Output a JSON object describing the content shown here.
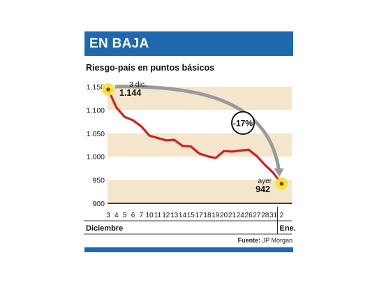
{
  "header": {
    "title": "EN BAJA"
  },
  "subtitle": "Riesgo-país en puntos básicos",
  "source": {
    "label": "Fuente:",
    "value": "JP Morgan"
  },
  "colors": {
    "brand_blue": "#1f68ad",
    "band": "#f4e6cc",
    "line": "#d2211f",
    "highlight": "#e9e93a",
    "arrow": "#9a9a9a"
  },
  "chart_data": {
    "type": "line",
    "title": "",
    "xlabel": "",
    "ylabel": "",
    "ylim": [
      900,
      1150
    ],
    "yticks": [
      900,
      950,
      1000,
      1050,
      1100,
      1150
    ],
    "ytick_labels": [
      "900",
      "950",
      "1.000",
      "1.050",
      "1.100",
      "1.150"
    ],
    "x": [
      "3",
      "4",
      "5",
      "6",
      "7",
      "10",
      "11",
      "12",
      "13",
      "14",
      "15",
      "17",
      "18",
      "19",
      "20",
      "21",
      "24",
      "26",
      "27",
      "28",
      "31",
      "2"
    ],
    "series": [
      {
        "values": [
          1144,
          1105,
          1085,
          1078,
          1065,
          1045,
          1040,
          1035,
          1036,
          1023,
          1022,
          1007,
          1001,
          997,
          1012,
          1011,
          1013,
          1015,
          1001,
          982,
          965,
          942
        ]
      }
    ],
    "months": [
      "Diciembre",
      "Ene."
    ],
    "annotations": {
      "start_label": "3 dic.",
      "start_value": "1.144",
      "end_label": "ayer",
      "end_value": "942",
      "change": "-17%"
    }
  }
}
